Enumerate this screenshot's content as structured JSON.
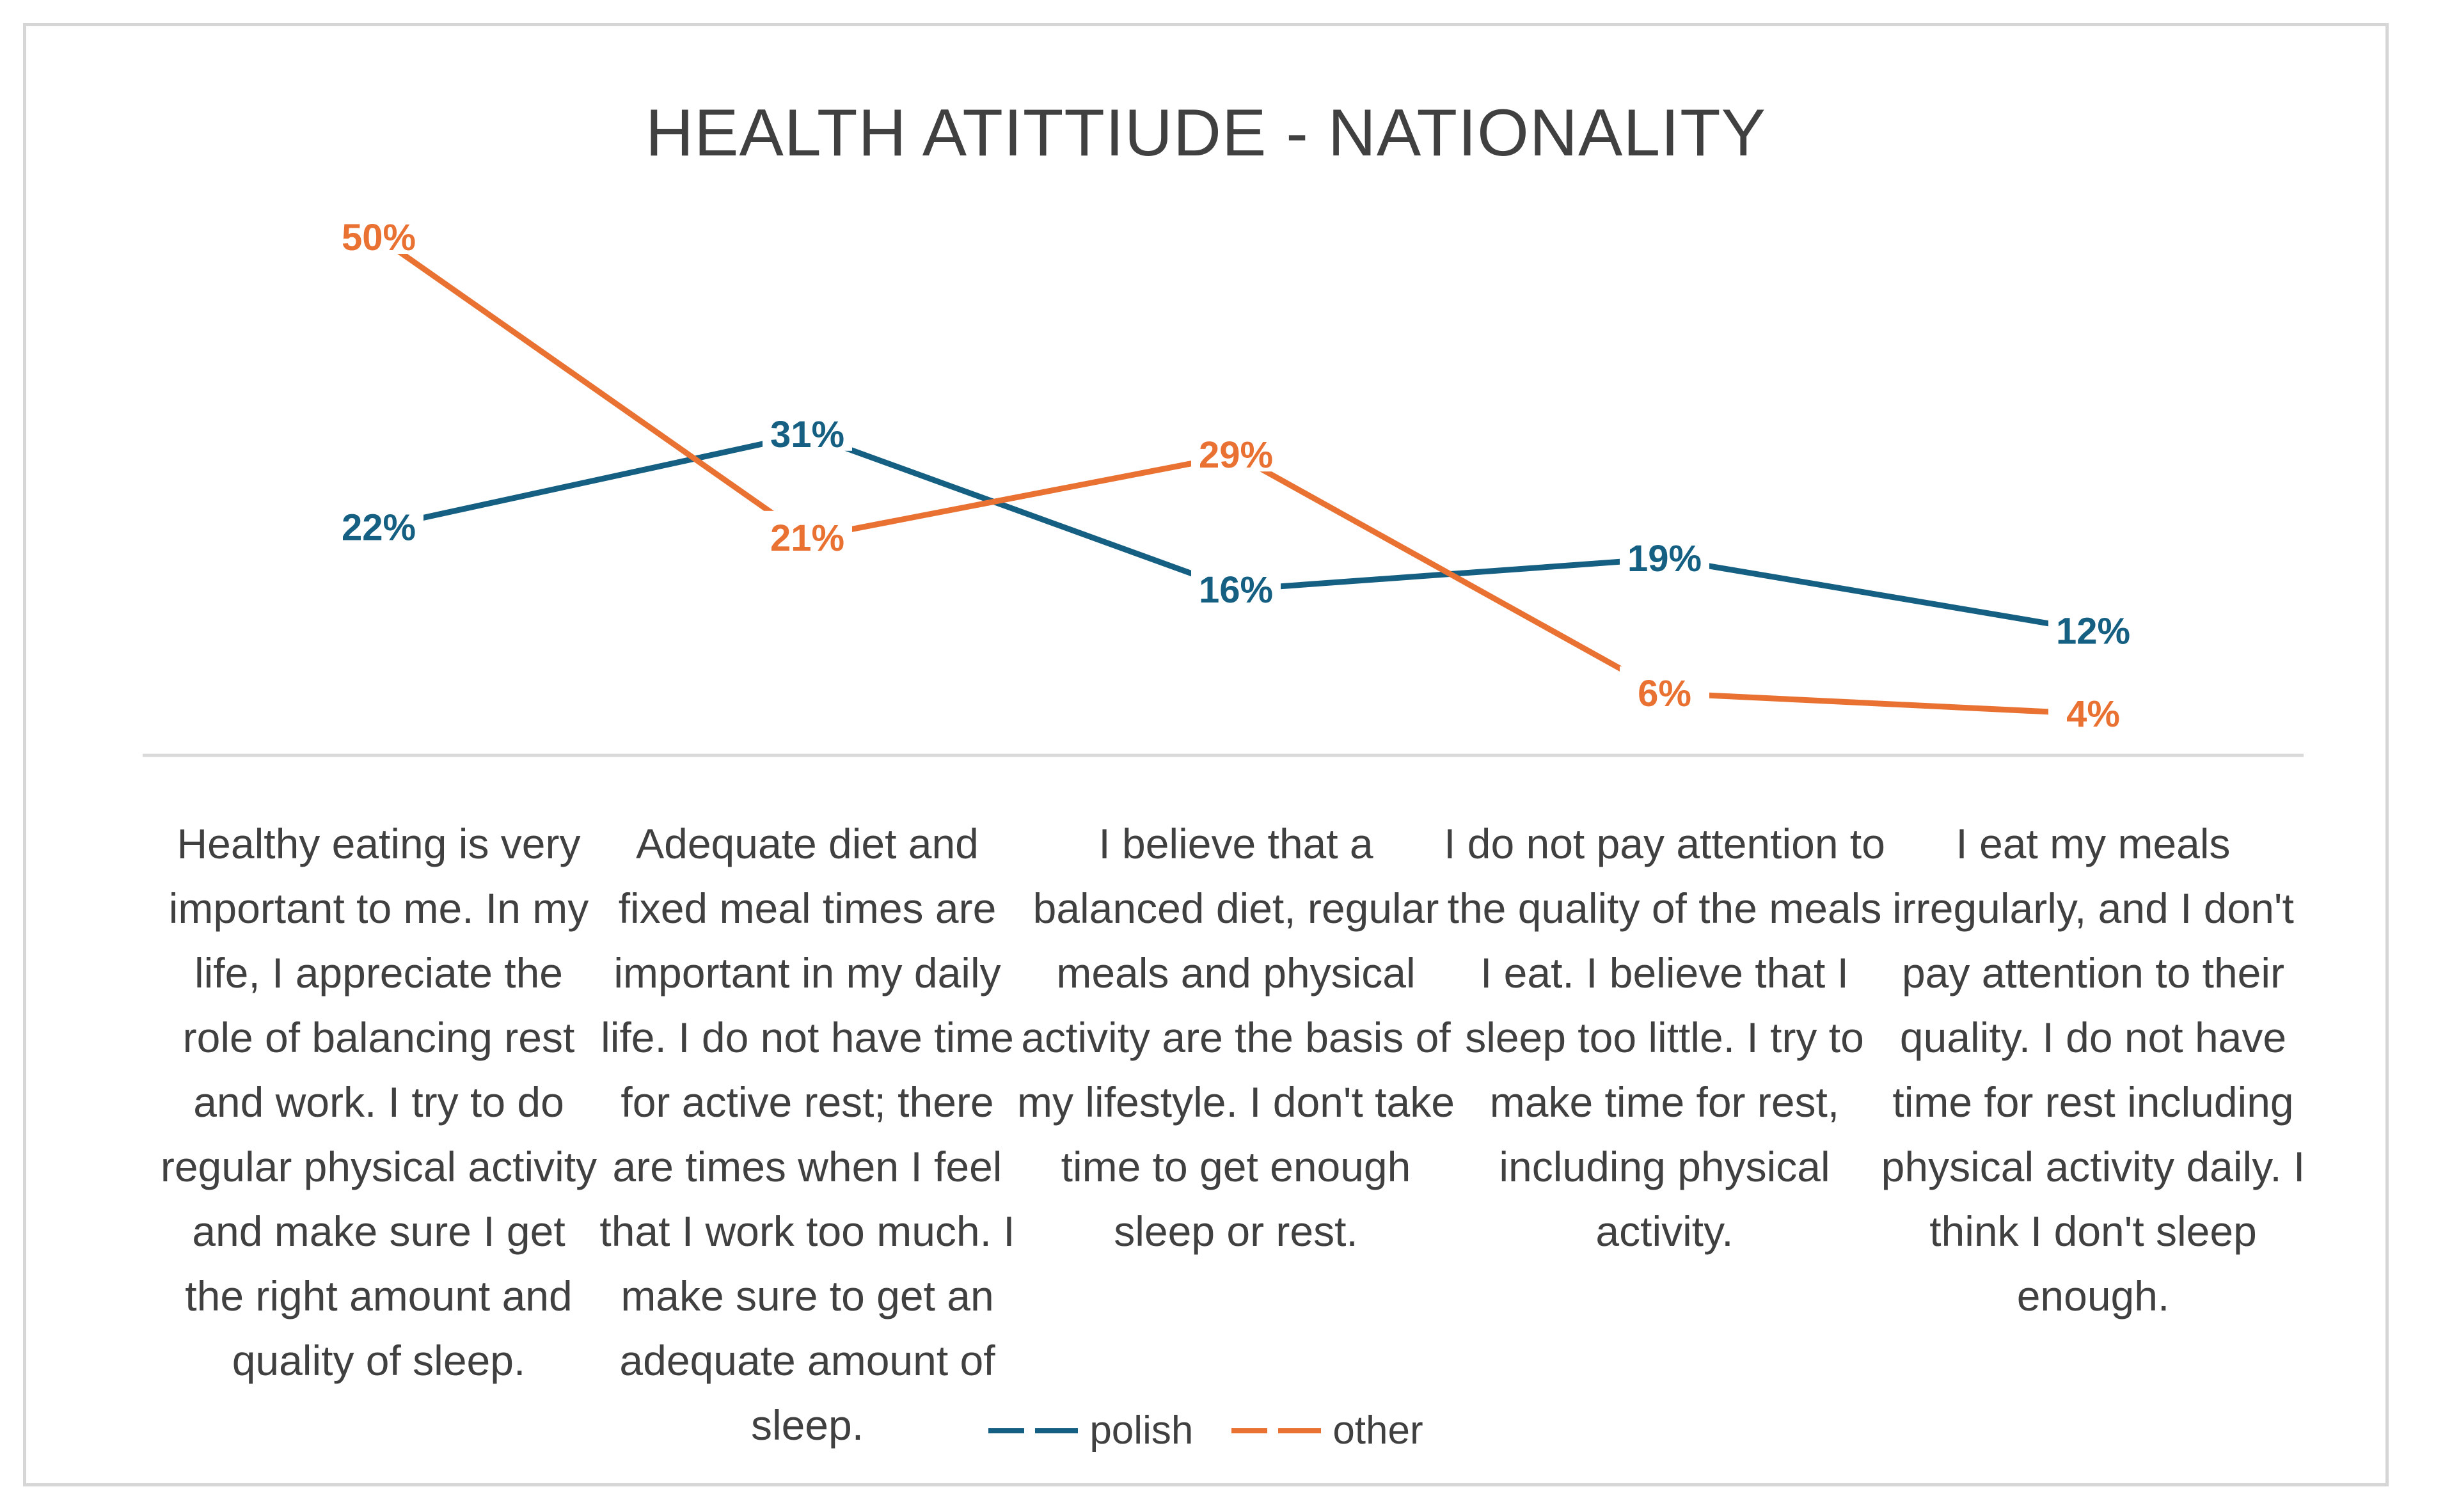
{
  "chart_data": {
    "type": "line",
    "title": "HEALTH ATITTIUDE - NATIONALITY",
    "categories": [
      "Healthy eating is very important to me. In my life, I appreciate the role of balancing rest and work. I try to do regular physical activity and make sure I get the right amount and quality of sleep.",
      "Adequate diet and fixed meal times are important in my daily life. I do not have time for active rest; there are times when I feel that I work too much. I make sure to get an adequate amount of sleep.",
      "I believe that a balanced diet, regular meals and physical activity are the basis of my lifestyle. I don't take time to get enough sleep or rest.",
      "I do not pay attention to the quality of the meals I eat. I believe that I sleep too little. I try to make time for rest, including physical activity.",
      "I eat my meals irregularly, and I don't pay attention to their quality. I do not have time for rest including physical activity daily. I think I don't sleep enough."
    ],
    "series": [
      {
        "name": "polish",
        "color": "#156082",
        "values": [
          22,
          31,
          16,
          19,
          12
        ],
        "labels": [
          "22%",
          "31%",
          "16%",
          "19%",
          "12%"
        ]
      },
      {
        "name": "other",
        "color": "#E97132",
        "values": [
          50,
          21,
          29,
          6,
          4
        ],
        "labels": [
          "50%",
          "21%",
          "29%",
          "6%",
          "4%"
        ]
      }
    ],
    "ylim": [
      0,
      55
    ],
    "unit": "%",
    "grid": false,
    "legend": "bottom",
    "xlabel": "",
    "ylabel": ""
  }
}
